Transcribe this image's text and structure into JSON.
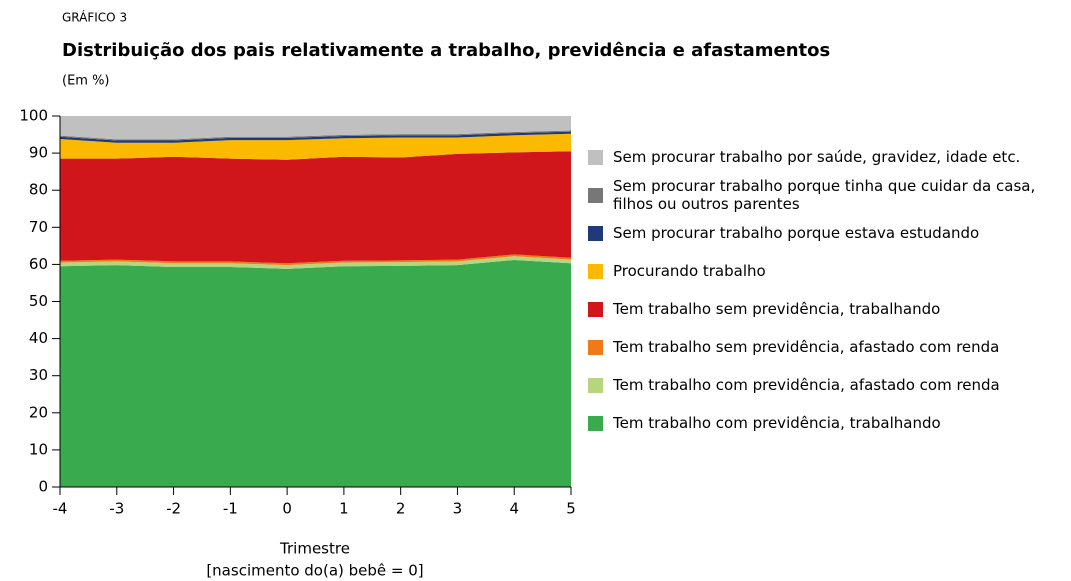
{
  "chart_data": {
    "type": "stacked_area",
    "kicker": "GRÁFICO 3",
    "title": "Distribuição dos pais relativamente a trabalho, previdência e afastamentos",
    "subtitle": "(Em %)",
    "xlabel": [
      "Trimestre",
      "[nascimento do(a) bebê = 0]"
    ],
    "x": [
      -4,
      -3,
      -2,
      -1,
      0,
      1,
      2,
      3,
      4,
      5
    ],
    "xlim": [
      -4,
      5
    ],
    "xticks": [
      -4,
      -3,
      -2,
      -1,
      0,
      1,
      2,
      3,
      4,
      5
    ],
    "ylim": [
      0,
      100
    ],
    "yticks": [
      0,
      10,
      20,
      30,
      40,
      50,
      60,
      70,
      80,
      90,
      100
    ],
    "series": [
      {
        "name": "Tem trabalho com previdência, trabalhando",
        "color": "#3aaa4f",
        "values": [
          59.5,
          59.8,
          59.3,
          59.3,
          58.8,
          59.5,
          59.6,
          59.8,
          61.2,
          60.3
        ]
      },
      {
        "name": "Tem trabalho com previdência, afastado com renda",
        "color": "#b5d57f",
        "values": [
          1.0,
          1.0,
          1.0,
          1.0,
          1.0,
          1.0,
          1.0,
          1.0,
          1.0,
          1.0
        ]
      },
      {
        "name": "Tem trabalho sem previdência, afastado com renda",
        "color": "#f07a1a",
        "values": [
          0.5,
          0.5,
          0.5,
          0.5,
          0.5,
          0.5,
          0.5,
          0.5,
          0.5,
          0.5
        ]
      },
      {
        "name": "Tem trabalho sem previdência, trabalhando",
        "color": "#d0161b",
        "values": [
          27.5,
          27.2,
          28.2,
          27.7,
          27.9,
          28.0,
          27.7,
          28.5,
          27.5,
          28.7
        ]
      },
      {
        "name": "Procurando trabalho",
        "color": "#fbb900",
        "values": [
          5.3,
          4.3,
          3.8,
          5.0,
          5.3,
          5.0,
          5.4,
          4.4,
          4.6,
          4.7
        ]
      },
      {
        "name": "Sem procurar trabalho porque estava estudando",
        "color": "#1f3a7a",
        "values": [
          0.6,
          0.6,
          0.6,
          0.6,
          0.6,
          0.6,
          0.6,
          0.6,
          0.6,
          0.6
        ]
      },
      {
        "name": "Sem procurar trabalho porque tinha que cuidar da casa, filhos ou outros parentes",
        "color": "#777777",
        "values": [
          0.3,
          0.3,
          0.3,
          0.3,
          0.3,
          0.3,
          0.3,
          0.3,
          0.3,
          0.3
        ]
      },
      {
        "name": "Sem procurar trabalho por saúde, gravidez, idade etc.",
        "color": "#c0c0c0",
        "values": [
          5.3,
          6.3,
          6.3,
          5.6,
          5.6,
          5.1,
          4.9,
          4.9,
          4.3,
          3.9
        ]
      }
    ]
  }
}
